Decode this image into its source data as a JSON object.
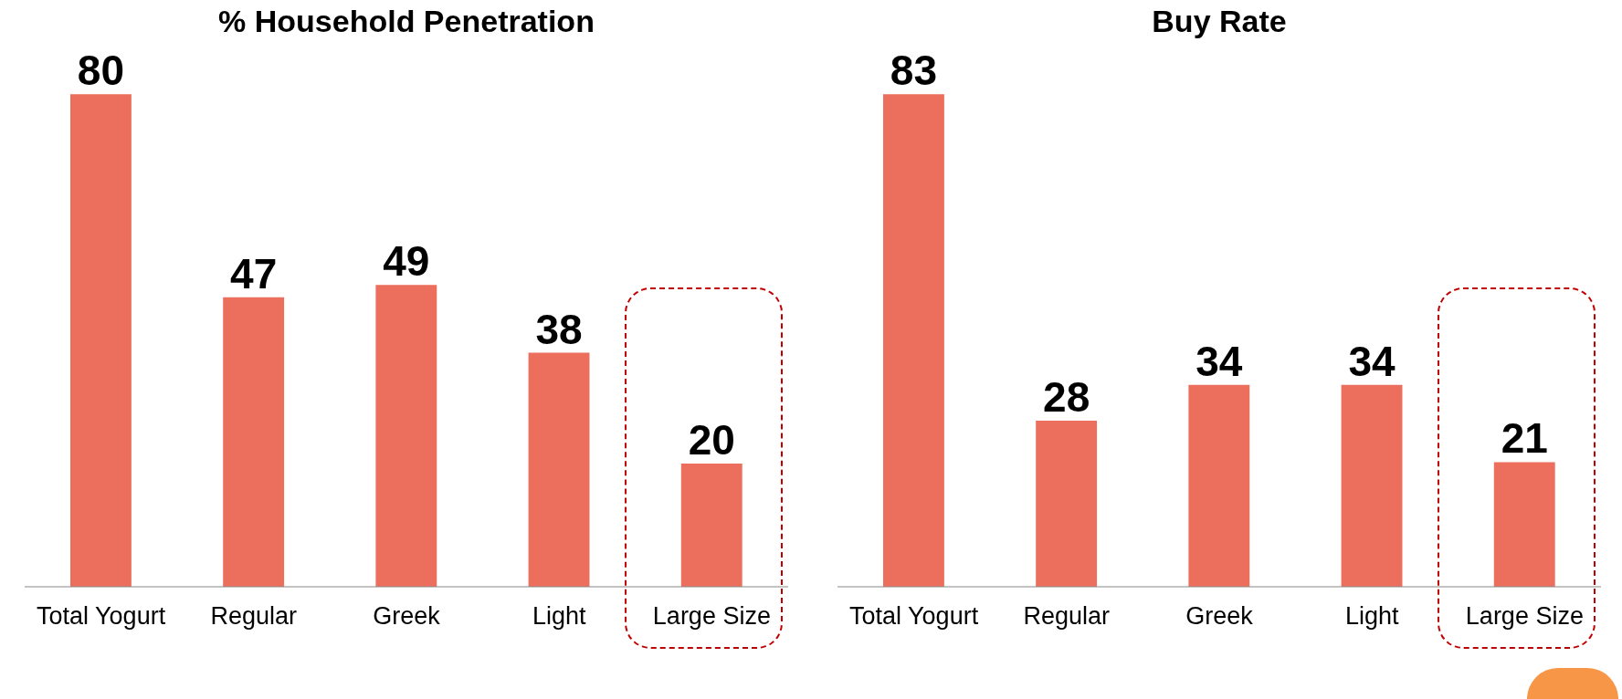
{
  "chart_data": [
    {
      "type": "bar",
      "title": "% Household Penetration",
      "categories": [
        "Total Yogurt",
        "Regular",
        "Greek",
        "Light",
        "Large Size"
      ],
      "values": [
        80,
        47,
        49,
        38,
        20
      ],
      "color": "#eb6f5c",
      "data_labels": true
    },
    {
      "type": "bar",
      "title": "Buy Rate",
      "categories": [
        "Total Yogurt",
        "Regular",
        "Greek",
        "Light",
        "Large Size"
      ],
      "values": [
        83,
        28,
        34,
        34,
        21
      ],
      "color": "#eb6f5c",
      "data_labels": true
    }
  ]
}
